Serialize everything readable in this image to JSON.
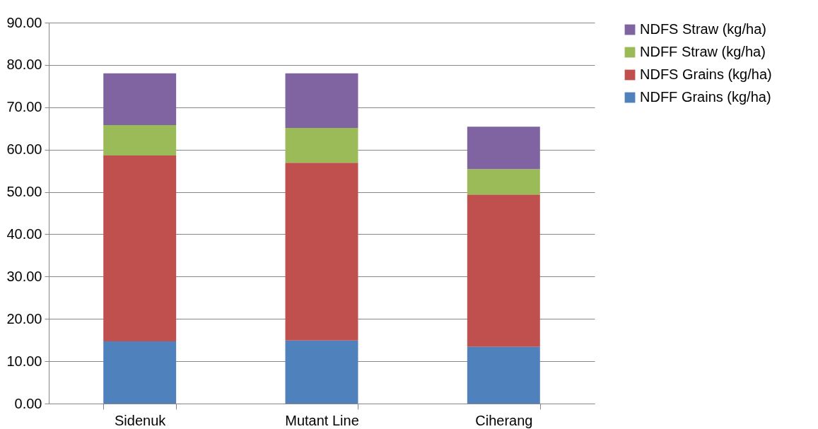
{
  "chart_data": {
    "type": "bar",
    "stacked": true,
    "categories": [
      "Sidenuk",
      "Mutant Line",
      "Ciherang"
    ],
    "series": [
      {
        "name": "NDFF Grains (kg/ha)",
        "color": "#4f81bd",
        "values": [
          14.7,
          14.9,
          13.4
        ]
      },
      {
        "name": "NDFS Grains (kg/ha)",
        "color": "#c0504d",
        "values": [
          43.9,
          42.0,
          36.0
        ]
      },
      {
        "name": "NDFF Straw  (kg/ha)",
        "color": "#9bbb59",
        "values": [
          7.2,
          8.2,
          6.0
        ]
      },
      {
        "name": "NDFS Straw  (kg/ha)",
        "color": "#8064a2",
        "values": [
          12.2,
          12.9,
          10.0
        ]
      }
    ],
    "ylim": [
      0,
      90
    ],
    "yticks": [
      {
        "value": 0,
        "label": "0.00"
      },
      {
        "value": 10,
        "label": "10.00"
      },
      {
        "value": 20,
        "label": "20.00"
      },
      {
        "value": 30,
        "label": "30.00"
      },
      {
        "value": 40,
        "label": "40.00"
      },
      {
        "value": 50,
        "label": "50.00"
      },
      {
        "value": 60,
        "label": "60.00"
      },
      {
        "value": 70,
        "label": "70.00"
      },
      {
        "value": 80,
        "label": "80.00"
      },
      {
        "value": 90,
        "label": "90.00"
      }
    ],
    "grid": "y",
    "legend": "right"
  }
}
